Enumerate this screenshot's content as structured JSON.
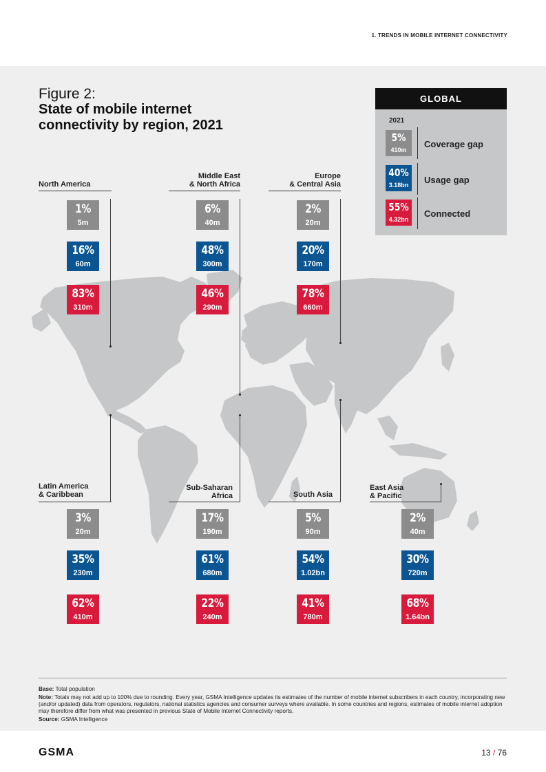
{
  "header": {
    "section": "1. TRENDS IN MOBILE INTERNET CONNECTIVITY"
  },
  "figure": {
    "label": "Figure 2:",
    "title": "State of mobile internet connectivity by region, 2021"
  },
  "colors": {
    "coverage_gap": "#8c8c8c",
    "usage_gap": "#0b5592",
    "connected": "#d81a3c",
    "map": "#c6c7c8"
  },
  "global": {
    "title": "GLOBAL",
    "year": "2021",
    "items": [
      {
        "pct": "5%",
        "num": "410m",
        "label": "Coverage gap"
      },
      {
        "pct": "40%",
        "num": "3.18bn",
        "label": "Usage gap"
      },
      {
        "pct": "55%",
        "num": "4.32bn",
        "label": "Connected"
      }
    ]
  },
  "regions": [
    {
      "name": "North America",
      "coverage": {
        "pct": "1%",
        "num": "5m"
      },
      "usage": {
        "pct": "16%",
        "num": "60m"
      },
      "connected": {
        "pct": "83%",
        "num": "310m"
      }
    },
    {
      "name": "Middle East\n& North Africa",
      "coverage": {
        "pct": "6%",
        "num": "40m"
      },
      "usage": {
        "pct": "48%",
        "num": "300m"
      },
      "connected": {
        "pct": "46%",
        "num": "290m"
      }
    },
    {
      "name": "Europe\n& Central Asia",
      "coverage": {
        "pct": "2%",
        "num": "20m"
      },
      "usage": {
        "pct": "20%",
        "num": "170m"
      },
      "connected": {
        "pct": "78%",
        "num": "660m"
      }
    },
    {
      "name": "Latin America\n& Caribbean",
      "coverage": {
        "pct": "3%",
        "num": "20m"
      },
      "usage": {
        "pct": "35%",
        "num": "230m"
      },
      "connected": {
        "pct": "62%",
        "num": "410m"
      }
    },
    {
      "name": "Sub-Saharan\nAfrica",
      "coverage": {
        "pct": "17%",
        "num": "190m"
      },
      "usage": {
        "pct": "61%",
        "num": "680m"
      },
      "connected": {
        "pct": "22%",
        "num": "240m"
      }
    },
    {
      "name": "South Asia",
      "coverage": {
        "pct": "5%",
        "num": "90m"
      },
      "usage": {
        "pct": "54%",
        "num": "1.02bn"
      },
      "connected": {
        "pct": "41%",
        "num": "780m"
      }
    },
    {
      "name": "East Asia\n& Pacific",
      "coverage": {
        "pct": "2%",
        "num": "40m"
      },
      "usage": {
        "pct": "30%",
        "num": "720m"
      },
      "connected": {
        "pct": "68%",
        "num": "1.64bn"
      }
    }
  ],
  "notes": {
    "base_label": "Base:",
    "base_text": "Total population",
    "note_label": "Note:",
    "note_text": "Totals may not add up to 100% due to rounding. Every year, GSMA Intelligence updates its estimates of the number of mobile internet subscribers in each country, incorporating new (and/or updated) data from operators, regulators, national statistics agencies and consumer surveys where available. In some countries and regions, estimates of mobile internet adoption may therefore differ from what was presented in previous State of Mobile Internet Connectivity reports.",
    "source_label": "Source:",
    "source_text": "GSMA Intelligence"
  },
  "footer": {
    "logo": "GSMA",
    "page": "13",
    "sep": "/",
    "total": "76"
  }
}
